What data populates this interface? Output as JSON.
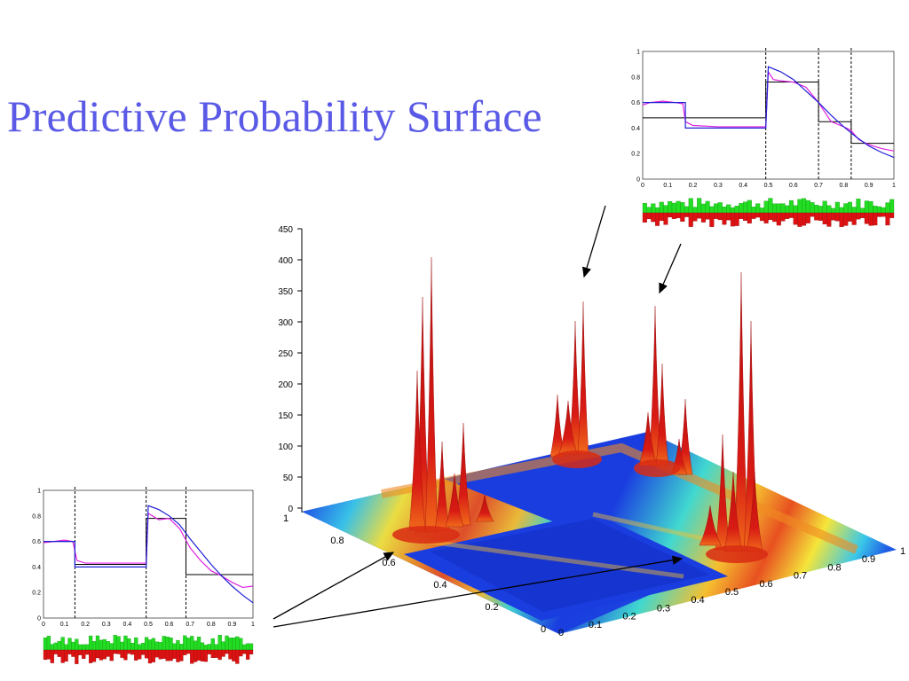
{
  "slide": {
    "title": "Predictive Probability Surface"
  },
  "colors": {
    "title": "#5a5ae6",
    "surface_peak": "#c81414",
    "surface_low": "#1a3de0",
    "inset_blue": "#1f1fd6",
    "inset_magenta": "#e020e0",
    "inset_black": "#000000",
    "hist_green": "#22dd22",
    "hist_red": "#dd1111"
  },
  "surface_plot": {
    "z_ticks": [
      "0",
      "50",
      "100",
      "150",
      "200",
      "250",
      "300",
      "350",
      "400",
      "450"
    ],
    "left_axis_ticks": [
      "0",
      "0.2",
      "0.4",
      "0.6",
      "0.8",
      "1"
    ],
    "right_axis_ticks": [
      "0",
      "0.1",
      "0.2",
      "0.3",
      "0.4",
      "0.5",
      "0.6",
      "0.7",
      "0.8",
      "0.9",
      "1"
    ]
  },
  "top_inset": {
    "y_ticks": [
      "0",
      "0.2",
      "0.4",
      "0.6",
      "0.8",
      "1"
    ],
    "x_ticks": [
      "0",
      "0.1",
      "0.2",
      "0.3",
      "0.4",
      "0.5",
      "0.6",
      "0.7",
      "0.8",
      "0.9",
      "1"
    ],
    "changepoints": [
      0.49,
      0.7,
      0.83
    ],
    "step_black": [
      [
        0,
        0.48
      ],
      [
        0.49,
        0.48
      ],
      [
        0.49,
        0.76
      ],
      [
        0.7,
        0.76
      ],
      [
        0.7,
        0.45
      ],
      [
        0.83,
        0.45
      ],
      [
        0.83,
        0.28
      ],
      [
        1,
        0.28
      ]
    ],
    "blue_curve": [
      [
        0,
        0.6
      ],
      [
        0.17,
        0.6
      ],
      [
        0.17,
        0.4
      ],
      [
        0.49,
        0.4
      ],
      [
        0.5,
        0.88
      ],
      [
        0.55,
        0.84
      ],
      [
        0.6,
        0.78
      ],
      [
        0.65,
        0.69
      ],
      [
        0.7,
        0.6
      ],
      [
        0.75,
        0.5
      ],
      [
        0.8,
        0.41
      ],
      [
        0.85,
        0.33
      ],
      [
        0.9,
        0.26
      ],
      [
        0.95,
        0.21
      ],
      [
        1,
        0.17
      ]
    ],
    "magenta_curve": [
      [
        0,
        0.58
      ],
      [
        0.03,
        0.6
      ],
      [
        0.08,
        0.61
      ],
      [
        0.13,
        0.6
      ],
      [
        0.16,
        0.59
      ],
      [
        0.17,
        0.45
      ],
      [
        0.2,
        0.42
      ],
      [
        0.3,
        0.41
      ],
      [
        0.4,
        0.41
      ],
      [
        0.49,
        0.41
      ],
      [
        0.5,
        0.84
      ],
      [
        0.52,
        0.78
      ],
      [
        0.55,
        0.77
      ],
      [
        0.6,
        0.76
      ],
      [
        0.65,
        0.72
      ],
      [
        0.7,
        0.6
      ],
      [
        0.75,
        0.45
      ],
      [
        0.8,
        0.41
      ],
      [
        0.83,
        0.38
      ],
      [
        0.86,
        0.31
      ],
      [
        0.9,
        0.27
      ],
      [
        0.95,
        0.24
      ],
      [
        1,
        0.22
      ]
    ]
  },
  "bottom_inset": {
    "y_ticks": [
      "0",
      "0.2",
      "0.4",
      "0.6",
      "0.8",
      "1"
    ],
    "x_ticks": [
      "0",
      "0.1",
      "0.2",
      "0.3",
      "0.4",
      "0.5",
      "0.6",
      "0.7",
      "0.8",
      "0.9",
      "1"
    ],
    "changepoints": [
      0.15,
      0.49,
      0.68
    ],
    "step_black": [
      [
        0,
        0.6
      ],
      [
        0.15,
        0.6
      ],
      [
        0.15,
        0.42
      ],
      [
        0.49,
        0.42
      ],
      [
        0.49,
        0.78
      ],
      [
        0.68,
        0.78
      ],
      [
        0.68,
        0.34
      ],
      [
        1,
        0.34
      ]
    ],
    "blue_curve": [
      [
        0,
        0.6
      ],
      [
        0.15,
        0.6
      ],
      [
        0.15,
        0.4
      ],
      [
        0.49,
        0.4
      ],
      [
        0.5,
        0.88
      ],
      [
        0.55,
        0.85
      ],
      [
        0.6,
        0.8
      ],
      [
        0.65,
        0.73
      ],
      [
        0.7,
        0.62
      ],
      [
        0.75,
        0.52
      ],
      [
        0.8,
        0.42
      ],
      [
        0.85,
        0.33
      ],
      [
        0.9,
        0.25
      ],
      [
        0.95,
        0.18
      ],
      [
        1,
        0.12
      ]
    ],
    "magenta_curve": [
      [
        0,
        0.59
      ],
      [
        0.05,
        0.6
      ],
      [
        0.1,
        0.61
      ],
      [
        0.14,
        0.6
      ],
      [
        0.16,
        0.45
      ],
      [
        0.2,
        0.43
      ],
      [
        0.3,
        0.43
      ],
      [
        0.4,
        0.43
      ],
      [
        0.49,
        0.43
      ],
      [
        0.5,
        0.82
      ],
      [
        0.55,
        0.77
      ],
      [
        0.6,
        0.78
      ],
      [
        0.65,
        0.7
      ],
      [
        0.7,
        0.55
      ],
      [
        0.75,
        0.45
      ],
      [
        0.8,
        0.37
      ],
      [
        0.85,
        0.33
      ],
      [
        0.9,
        0.28
      ],
      [
        0.95,
        0.24
      ],
      [
        1,
        0.25
      ]
    ]
  }
}
